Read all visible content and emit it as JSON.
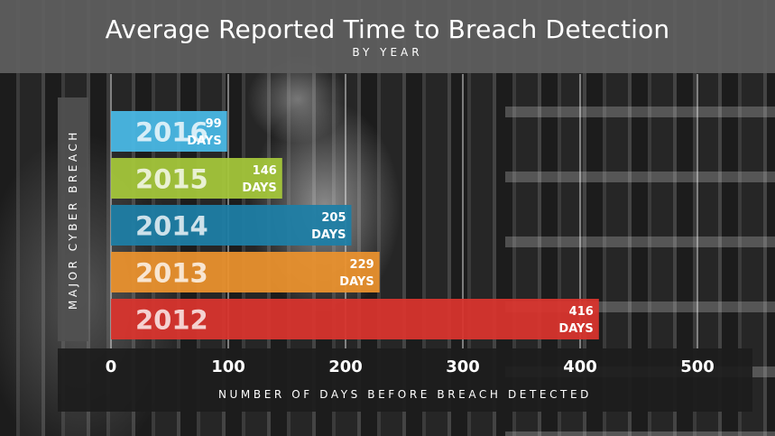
{
  "chart_data": {
    "type": "bar",
    "orientation": "horizontal",
    "title": "Average Reported Time to Breach Detection",
    "subtitle": "BY YEAR",
    "ylabel": "MAJOR CYBER BREACH",
    "xlabel": "NUMBER OF DAYS BEFORE BREACH DETECTED",
    "categories": [
      "2016",
      "2015",
      "2014",
      "2013",
      "2012"
    ],
    "values": [
      99,
      146,
      205,
      229,
      416
    ],
    "unit_label": "DAYS",
    "colors": [
      "#49b9e6",
      "#a5c73a",
      "#1e7ea6",
      "#ea922e",
      "#d9342e"
    ],
    "xlim": [
      0,
      500
    ],
    "xticks": [
      0,
      100,
      200,
      300,
      400,
      500
    ],
    "grid": true
  }
}
